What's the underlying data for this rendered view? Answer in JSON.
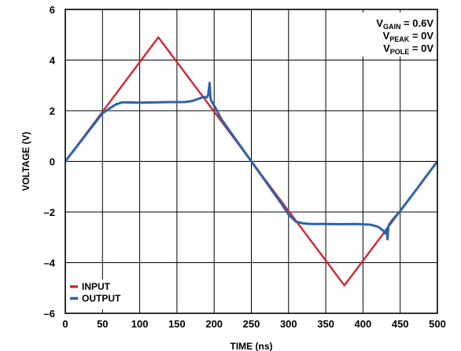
{
  "chart_data": {
    "type": "line",
    "xlabel": "TIME (ns)",
    "ylabel": "VOLTAGE (V)",
    "xlim": [
      0,
      500
    ],
    "ylim": [
      -6,
      6
    ],
    "x_ticks": [
      0,
      50,
      100,
      150,
      200,
      250,
      300,
      350,
      400,
      450,
      500
    ],
    "x_tick_labels": [
      "0",
      "50",
      "100",
      "150",
      "200",
      "250",
      "300",
      "350",
      "400",
      "450",
      "500"
    ],
    "y_ticks": [
      -6,
      -4,
      -2,
      0,
      2,
      4,
      6
    ],
    "y_tick_labels": [
      "–6",
      "–4",
      "–2",
      "0",
      "2",
      "4",
      "6"
    ],
    "grid": true,
    "legend_position": "bottom-left",
    "annotations": [
      {
        "main": "V",
        "sub": "GAIN",
        "rest": " = 0.6V"
      },
      {
        "main": "V",
        "sub": "PEAK",
        "rest": " = 0V"
      },
      {
        "main": "V",
        "sub": "POLE",
        "rest": " = 0V"
      }
    ],
    "series": [
      {
        "name": "INPUT",
        "color": "#d7262f",
        "x": [
          0,
          125,
          375,
          500
        ],
        "y": [
          0,
          4.9,
          -4.9,
          0
        ]
      },
      {
        "name": "OUTPUT",
        "color": "#2e63a8",
        "x": [
          0,
          50,
          60,
          68,
          76,
          85,
          100,
          120,
          140,
          160,
          170,
          180,
          186,
          190,
          192,
          194,
          195,
          196,
          197,
          199,
          202,
          210,
          250,
          290,
          300,
          310,
          320,
          330,
          350,
          370,
          390,
          410,
          420,
          428,
          430,
          432,
          433,
          434,
          435,
          437,
          440,
          450,
          470,
          500
        ],
        "y": [
          0,
          1.9,
          2.1,
          2.25,
          2.33,
          2.33,
          2.32,
          2.33,
          2.34,
          2.34,
          2.38,
          2.48,
          2.55,
          2.52,
          2.62,
          3.1,
          2.5,
          2.4,
          2.35,
          2.25,
          2.1,
          1.65,
          0,
          -1.65,
          -2.1,
          -2.38,
          -2.45,
          -2.47,
          -2.47,
          -2.48,
          -2.47,
          -2.5,
          -2.58,
          -2.75,
          -2.85,
          -2.65,
          -3.08,
          -2.6,
          -2.5,
          -2.42,
          -2.3,
          -1.96,
          -1.18,
          0
        ]
      }
    ]
  }
}
